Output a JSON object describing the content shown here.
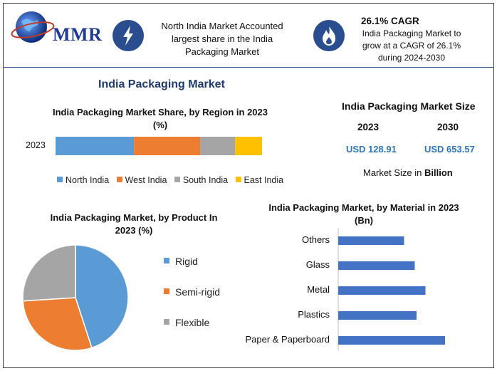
{
  "brand": {
    "logo_text": "MMR"
  },
  "header": {
    "fact1": "North India Market Accounted largest share in the India Packaging Market",
    "cagr_title": "26.1% CAGR",
    "cagr_text": "India Packaging Market to grow at a CAGR of 26.1% during 2024-2030",
    "icons": [
      "lightning-icon",
      "flame-icon"
    ]
  },
  "main_title": "India Packaging Market",
  "market_size": {
    "title": "India Packaging Market Size",
    "years": [
      "2023",
      "2030"
    ],
    "values": [
      "USD 128.91",
      "USD 653.57"
    ],
    "note_prefix": "Market Size in ",
    "note_unit": "Billion"
  },
  "colors": {
    "blue": "#5b9bd5",
    "orange": "#ed7d31",
    "gray": "#a5a5a5",
    "yellow": "#ffc000",
    "material_bar": "#4472c4"
  },
  "chart_data": [
    {
      "type": "bar",
      "orientation": "horizontal-stacked",
      "title": "India Packaging Market Share, by Region in 2023 (%)",
      "categories": [
        "2023"
      ],
      "series": [
        {
          "name": "North India",
          "values": [
            38
          ]
        },
        {
          "name": "West India",
          "values": [
            32
          ]
        },
        {
          "name": "South India",
          "values": [
            17
          ]
        },
        {
          "name": "East India",
          "values": [
            13
          ]
        }
      ],
      "legend": "bottom"
    },
    {
      "type": "pie",
      "title": "India Packaging Market, by Product In 2023 (%)",
      "labels": [
        "Rigid",
        "Semi-rigid",
        "Flexible"
      ],
      "values": [
        45,
        29,
        26
      ],
      "legend": "right"
    },
    {
      "type": "bar",
      "orientation": "horizontal",
      "title": "India Packaging Market, by Material in 2023 (Bn)",
      "categories": [
        "Others",
        "Glass",
        "Metal",
        "Plastics",
        "Paper & Paperboard"
      ],
      "values": [
        18.5,
        21.5,
        24.5,
        22,
        30
      ]
    }
  ]
}
